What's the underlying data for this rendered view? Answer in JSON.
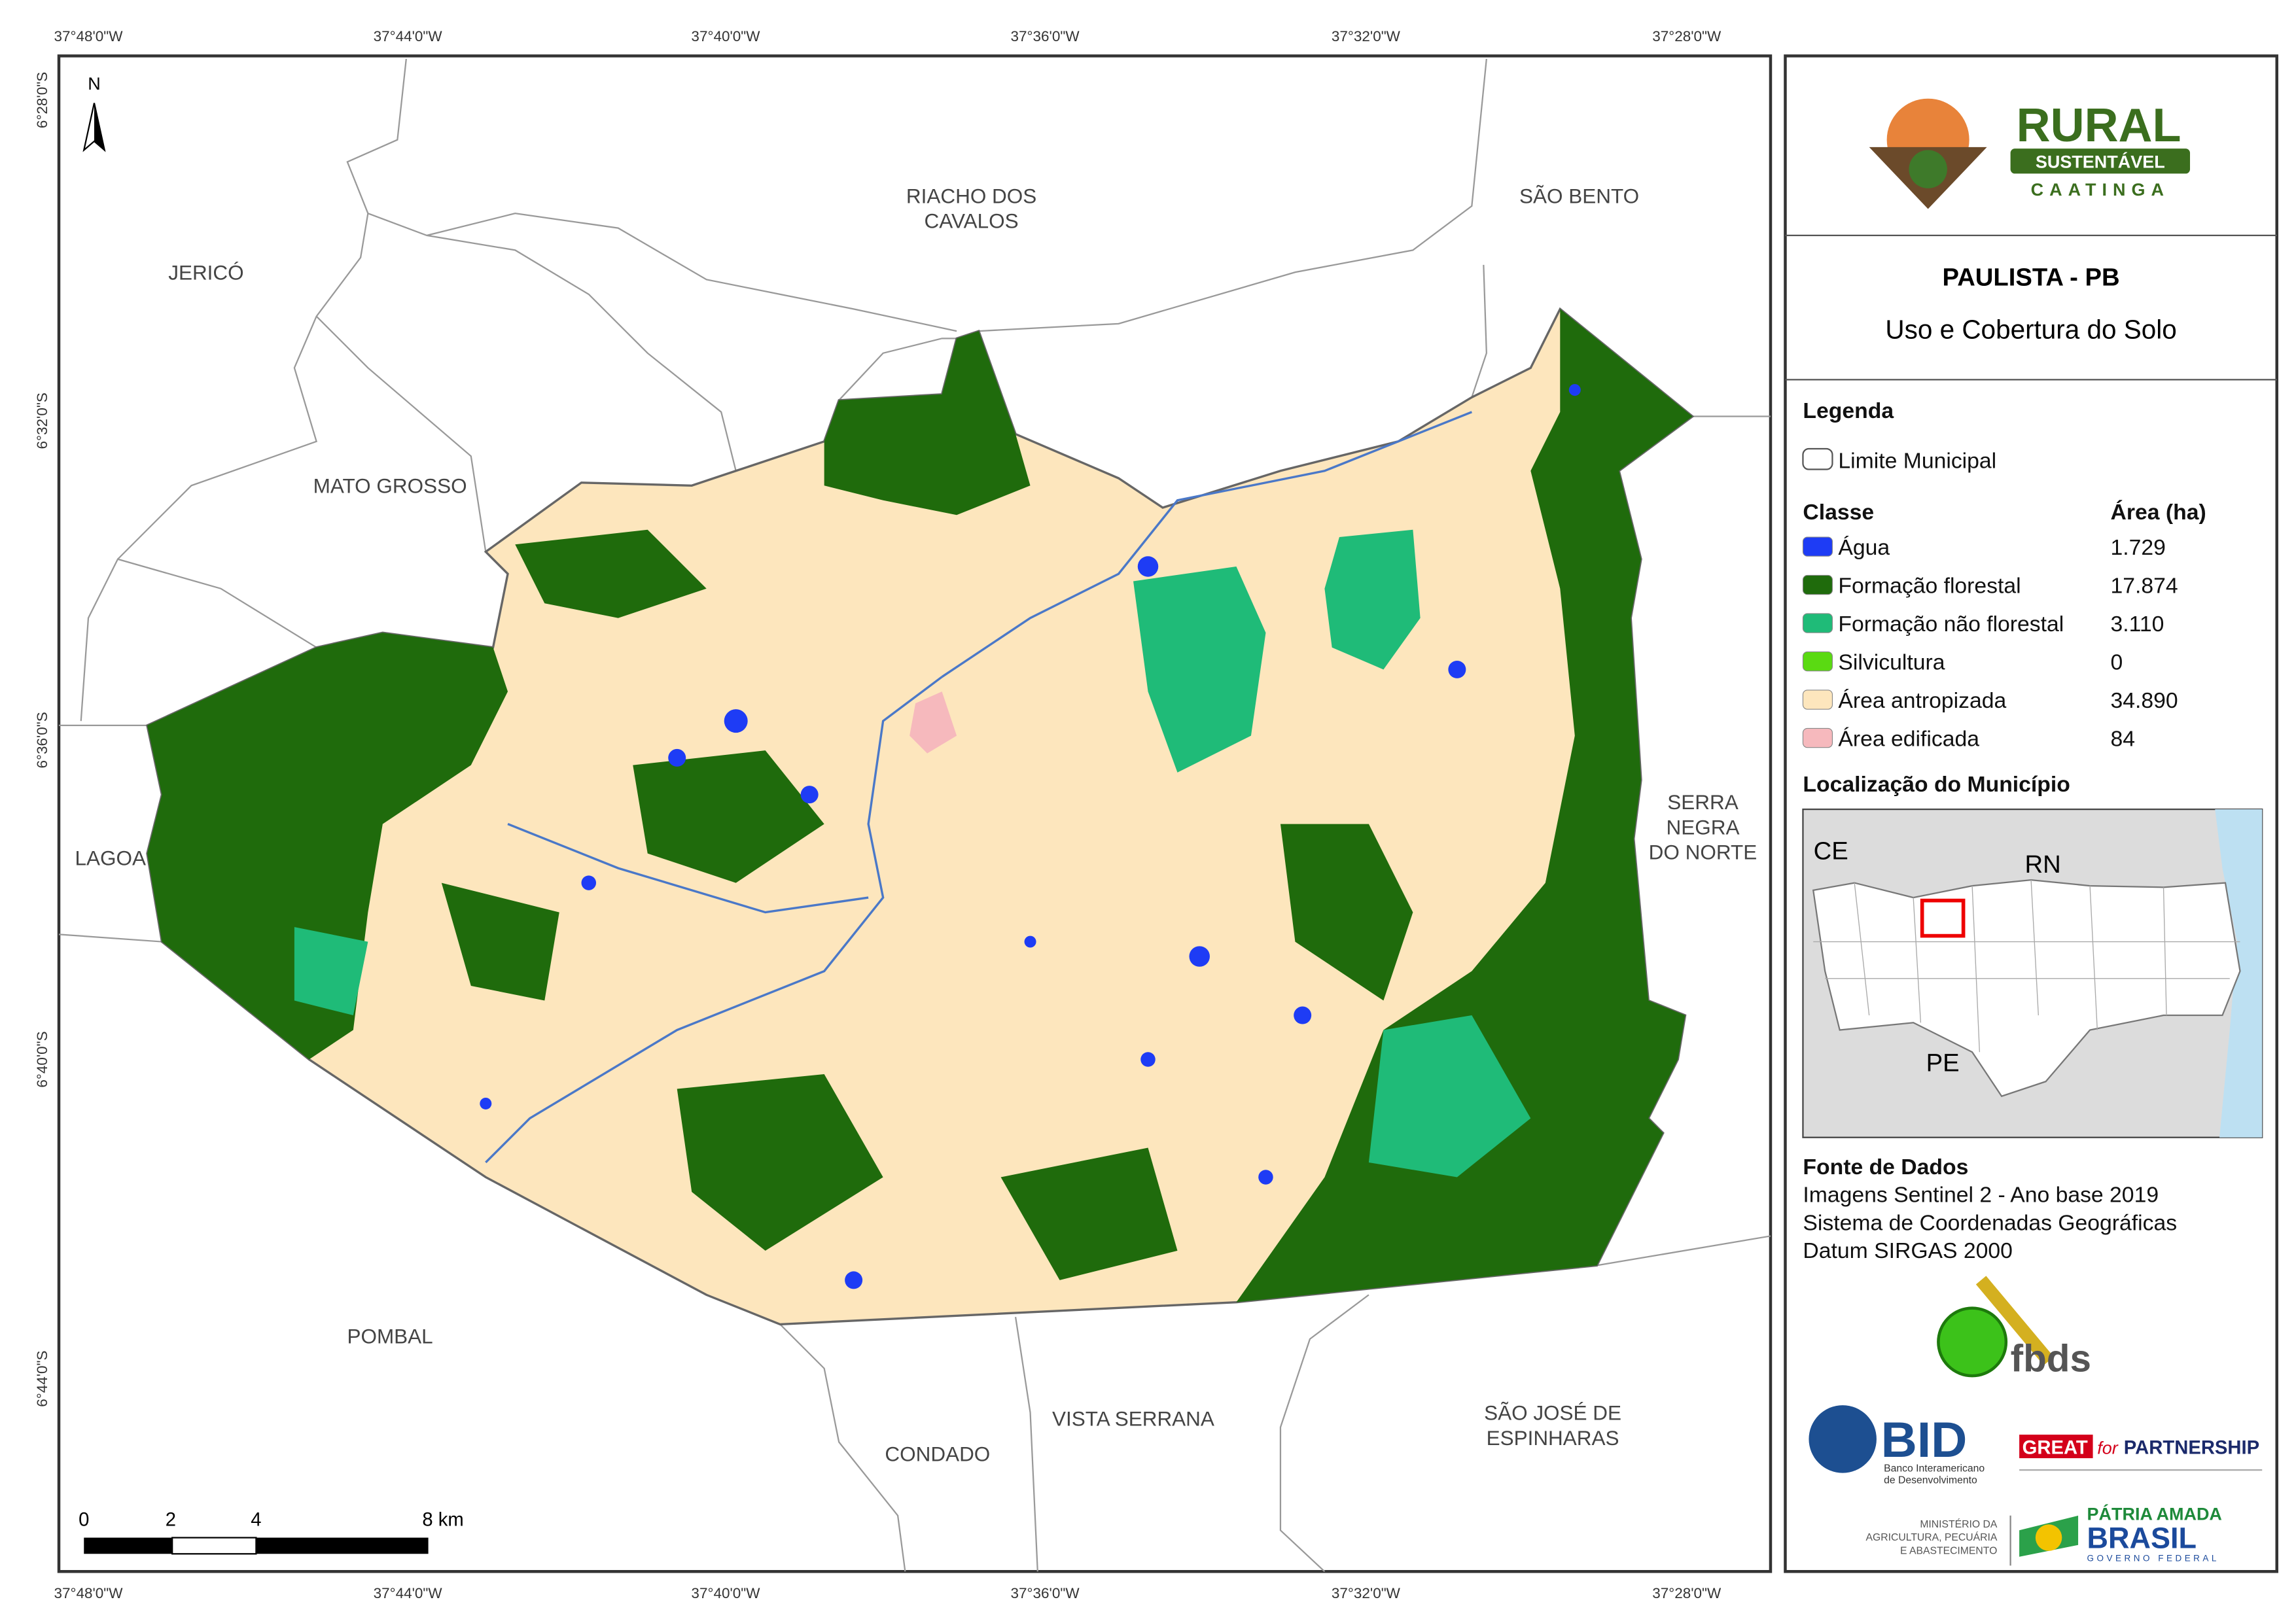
{
  "map": {
    "top_coords": [
      "37°48'0\"W",
      "37°44'0\"W",
      "37°40'0\"W",
      "37°36'0\"W",
      "37°32'0\"W",
      "37°28'0\"W"
    ],
    "bottom_coords": [
      "37°48'0\"W",
      "37°44'0\"W",
      "37°40'0\"W",
      "37°36'0\"W",
      "37°32'0\"W",
      "37°28'0\"W"
    ],
    "left_coords": [
      "6°28'0\"S",
      "6°32'0\"S",
      "6°36'0\"S",
      "6°40'0\"S",
      "6°44'0\"S"
    ],
    "north": "N",
    "places": [
      {
        "lines": [
          "JERICÓ"
        ]
      },
      {
        "lines": [
          "MATO GROSSO"
        ]
      },
      {
        "lines": [
          "RIACHO DOS",
          "CAVALOS"
        ]
      },
      {
        "lines": [
          "SÃO BENTO"
        ]
      },
      {
        "lines": [
          "SERRA",
          "NEGRA",
          "DO NORTE"
        ]
      },
      {
        "lines": [
          "LAGOA"
        ]
      },
      {
        "lines": [
          "POMBAL"
        ]
      },
      {
        "lines": [
          "CONDADO"
        ]
      },
      {
        "lines": [
          "VISTA SERRANA"
        ]
      },
      {
        "lines": [
          "SÃO JOSÉ DE",
          "ESPINHARAS"
        ]
      }
    ],
    "scale_labels": [
      "0",
      "2",
      "4",
      "8 km"
    ]
  },
  "panel": {
    "logo": {
      "title": "RURAL",
      "subtitle": "SUSTENTÁVEL",
      "tagline": "CAATINGA"
    },
    "title": "PAULISTA - PB",
    "subtitle": "Uso e Cobertura do Solo",
    "legend_heading": "Legenda",
    "boundary": "Limite Municipal",
    "class_heading": "Classe",
    "area_heading": "Área (ha)",
    "classes": [
      {
        "name": "Água",
        "area": "1.729",
        "color": "#1e3cf5"
      },
      {
        "name": "Formação florestal",
        "area": "17.874",
        "color": "#1f6b0c"
      },
      {
        "name": "Formação não florestal",
        "area": "3.110",
        "color": "#1fbb78"
      },
      {
        "name": "Silvicultura",
        "area": "0",
        "color": "#5ada12"
      },
      {
        "name": "Área antropizada",
        "area": "34.890",
        "color": "#fde6bd"
      },
      {
        "name": "Área edificada",
        "area": "84",
        "color": "#f6b9bd"
      }
    ],
    "location_heading": "Localização do Município",
    "location_labels": [
      "CE",
      "RN",
      "PE"
    ],
    "source_heading": "Fonte de Dados",
    "source_lines": [
      "Imagens Sentinel 2 - Ano base 2019",
      "Sistema de Coordenadas Geográficas",
      "Datum SIRGAS 2000"
    ],
    "partners": {
      "fbds": "fbds",
      "bid": "BID",
      "bid_name": [
        "Banco Interamericano",
        "de Desenvolvimento"
      ],
      "great": "GREAT",
      "for": "for",
      "partnership": "PARTNERSHIP",
      "ministry": [
        "MINISTÉRIO DA",
        "AGRICULTURA, PECUÁRIA",
        "E ABASTECIMENTO"
      ],
      "patria": "PÁTRIA AMADA",
      "brasil": "BRASIL",
      "governo": "GOVERNO FEDERAL"
    }
  }
}
